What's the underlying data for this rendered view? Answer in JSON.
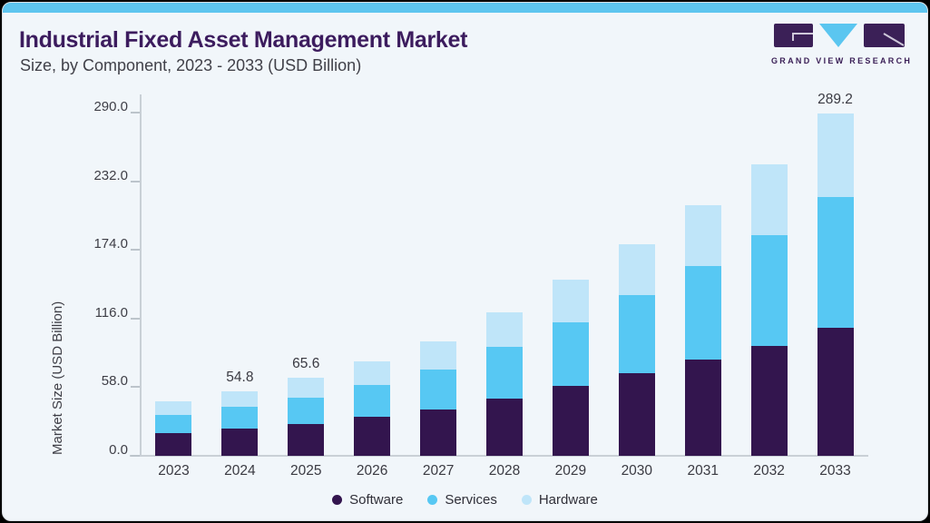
{
  "page": {
    "outer_bg": "#000000",
    "card_bg": "#f1f6fa",
    "accent_bar_color": "#5ec5ef"
  },
  "header": {
    "title": "Industrial Fixed Asset Management Market",
    "subtitle": "Size, by Component, 2023 - 2033 (USD Billion)",
    "title_color": "#3c1c5e",
    "logo_text": "GRAND VIEW RESEARCH",
    "logo_purple": "#3b2057",
    "logo_blue": "#5bc6f0"
  },
  "chart_data": {
    "type": "bar",
    "stacked": true,
    "title": "Industrial Fixed Asset Management Market Size, by Component, 2023 - 2033 (USD Billion)",
    "xlabel": "",
    "ylabel": "Market Size (USD Billion)",
    "ylim": [
      0,
      290
    ],
    "yticks": [
      0.0,
      58.0,
      116.0,
      174.0,
      232.0,
      290.0
    ],
    "ytick_labels": [
      "0.0",
      "58.0",
      "116.0",
      "174.0",
      "232.0",
      "290.0"
    ],
    "grid": false,
    "legend_position": "bottom",
    "categories": [
      "2023",
      "2024",
      "2025",
      "2026",
      "2027",
      "2028",
      "2029",
      "2030",
      "2031",
      "2032",
      "2033"
    ],
    "series": [
      {
        "name": "Software",
        "color": "#33154e",
        "values": [
          19.4,
          23.2,
          26.9,
          32.7,
          39.0,
          48.0,
          58.9,
          69.6,
          81.1,
          93.1,
          107.9
        ]
      },
      {
        "name": "Services",
        "color": "#57c8f3",
        "values": [
          15.1,
          17.9,
          22.4,
          27.2,
          34.2,
          43.8,
          54.1,
          66.0,
          79.3,
          93.3,
          110.9
        ]
      },
      {
        "name": "Hardware",
        "color": "#bfe5f9",
        "values": [
          11.5,
          13.7,
          16.3,
          19.9,
          23.7,
          29.3,
          35.7,
          43.1,
          51.5,
          60.1,
          70.4
        ]
      }
    ],
    "totals": [
      46.0,
      54.8,
      65.6,
      79.8,
      96.9,
      121.1,
      148.7,
      178.7,
      211.9,
      246.5,
      289.2
    ],
    "bar_labels": {
      "2024": "54.8",
      "2025": "65.6",
      "2033": "289.2"
    }
  },
  "legend": {
    "items": [
      {
        "label": "Software",
        "color": "#33154e"
      },
      {
        "label": "Services",
        "color": "#57c8f3"
      },
      {
        "label": "Hardware",
        "color": "#bfe5f9"
      }
    ]
  }
}
